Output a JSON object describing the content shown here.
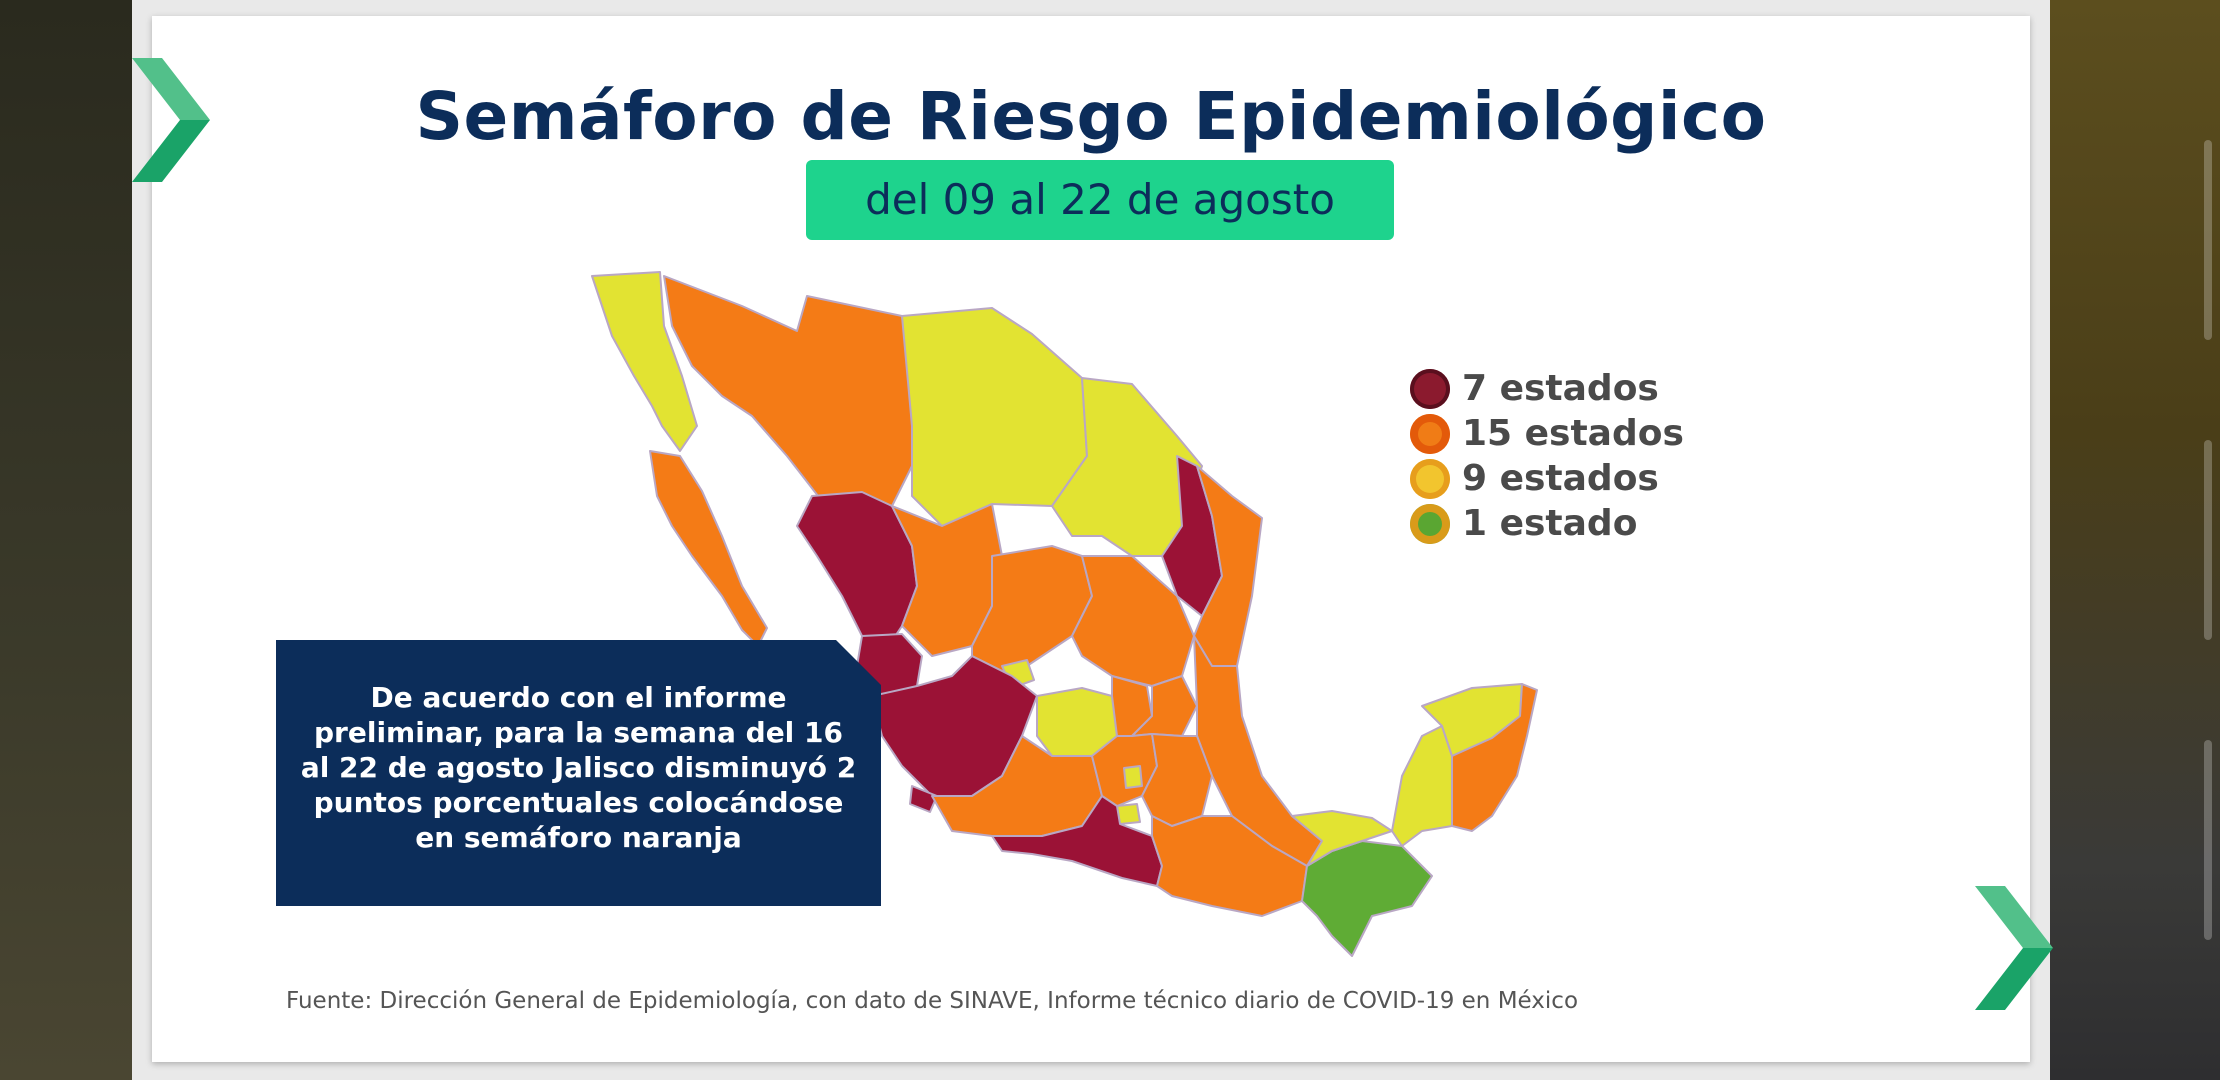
{
  "slide": {
    "title": "Semáforo de Riesgo Epidemiológico",
    "date_range": "del 09 al 22 de agosto",
    "note": "De acuerdo con el informe preliminar, para la semana del 16 al 22 de agosto Jalisco disminuyó 2 puntos porcentuales colocándose en semáforo naranja",
    "source": "Fuente: Dirección General de Epidemiología, con dato de SINAVE, Informe técnico diario de COVID-19 en México"
  },
  "legend": [
    {
      "label": "7 estados",
      "color": "#8b1a2e",
      "icon": "shield-icon"
    },
    {
      "label": "15 estados",
      "color": "#f07c16",
      "icon": "gear-icon"
    },
    {
      "label": "9 estados",
      "color": "#f2c52e",
      "icon": "star-icon"
    },
    {
      "label": "1 estado",
      "color": "#5aa632",
      "icon": "sun-icon"
    }
  ],
  "colors": {
    "red": "#9b1236",
    "orange": "#f47b16",
    "yellow": "#e2e332",
    "green": "#5fac35",
    "navy": "#0c2d5a",
    "accent": "#1ed38d"
  }
}
